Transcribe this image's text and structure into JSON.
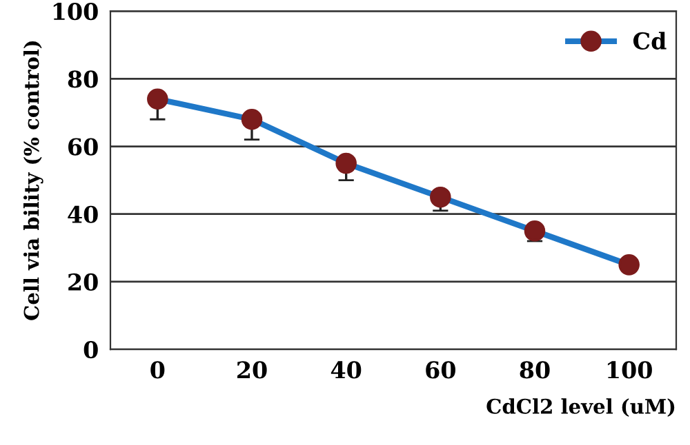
{
  "chart_data": {
    "type": "line",
    "xlabel": "CdCl2 level (uM)",
    "ylabel": "Cell via bility (% control)",
    "categories": [
      "0",
      "20",
      "40",
      "60",
      "80",
      "100"
    ],
    "series": [
      {
        "name": "Cd",
        "color": "#1f78c8",
        "colors": [
          "#7b1c1c",
          "#7b1c1c",
          "#7b1c1c",
          "#7b1c1c",
          "#7b1c1c",
          "#7b1c1c"
        ],
        "values": [
          74,
          68,
          55,
          45,
          35,
          25
        ],
        "errors": [
          [
            68,
            74
          ],
          [
            62,
            68
          ],
          [
            50,
            55
          ],
          [
            41,
            45
          ],
          [
            32,
            35
          ],
          null
        ]
      }
    ],
    "ylim": [
      0,
      100
    ],
    "yticks": [
      0,
      20,
      40,
      60,
      80,
      100
    ],
    "grid": "y",
    "legend": "top right",
    "marker": "circle",
    "line_style": "solid"
  }
}
